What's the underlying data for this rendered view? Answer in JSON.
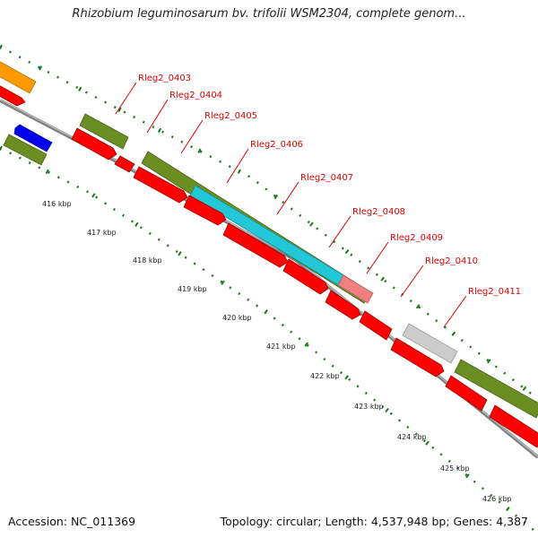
{
  "title": "Rhizobium leguminosarum bv. trifolii WSM2304, complete genom...",
  "footer": {
    "accession": "Accession: NC_011369",
    "summary": "Topology: circular; Length: 4,537,948 bp; Genes: 4,387"
  },
  "kbp_labels": [
    "416 kbp",
    "417 kbp",
    "418 kbp",
    "419 kbp",
    "420 kbp",
    "421 kbp",
    "422 kbp",
    "423 kbp",
    "424 kbp",
    "425 kbp",
    "426 kbp"
  ],
  "gene_labels": [
    "Rleg2_0403",
    "Rleg2_0404",
    "Rleg2_0405",
    "Rleg2_0406",
    "Rleg2_0407",
    "Rleg2_0408",
    "Rleg2_0409",
    "Rleg2_0410",
    "Rleg2_0411"
  ],
  "colors": {
    "gene": "#ff0000",
    "cog_green": "#6b8e23",
    "cog_orange": "#ff9900",
    "cog_blue": "#0000ee",
    "cog_cyan": "#22c8d8",
    "cog_salmon": "#f08080",
    "cog_grey": "#cccccc",
    "backbone": "#808080",
    "tick": "#1a7a1a",
    "label": "#e00000"
  }
}
